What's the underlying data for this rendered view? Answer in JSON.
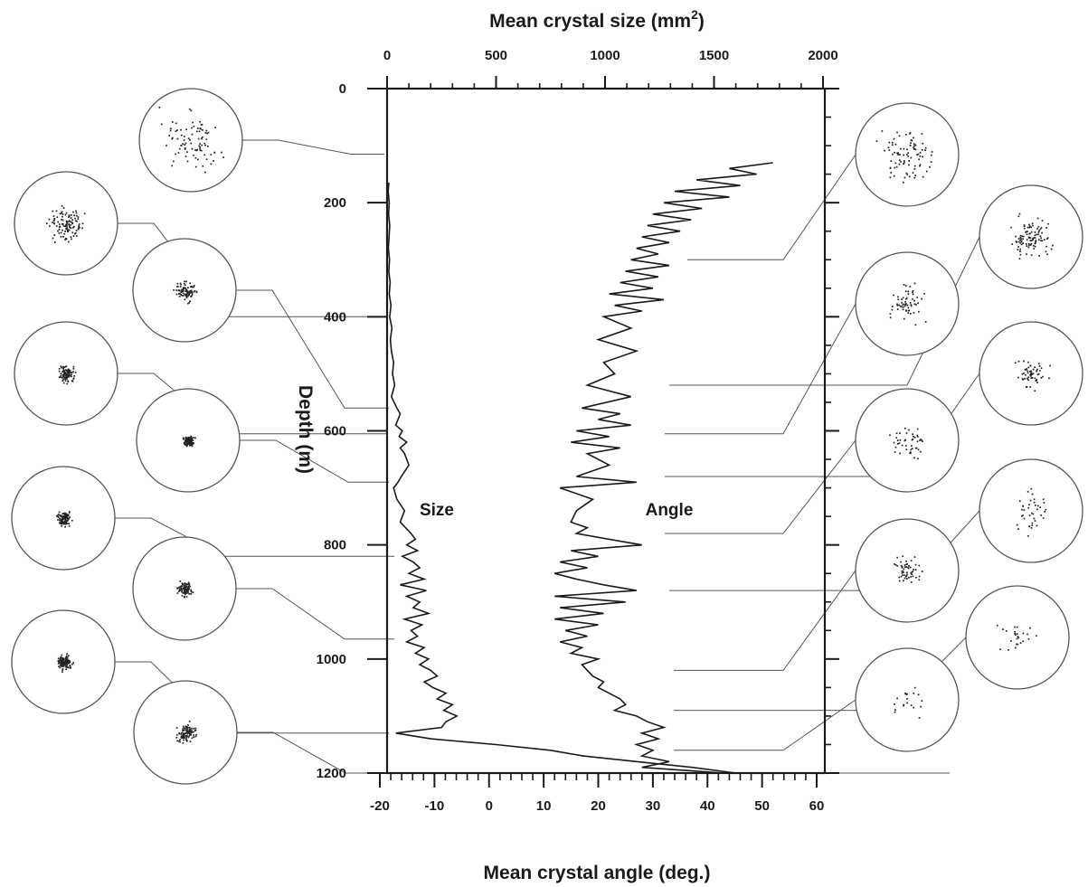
{
  "chart_data": {
    "type": "line",
    "top_axis": {
      "label_main": "Mean crystal size (mm",
      "label_sup": "2",
      "label_close": ")",
      "ticks": [
        "0",
        "500",
        "1000",
        "1500",
        "2000"
      ],
      "range": [
        0,
        2000
      ]
    },
    "bottom_axis": {
      "label": "Mean crystal angle (deg.)",
      "ticks": [
        "-20",
        "-10",
        "0",
        "10",
        "20",
        "30",
        "40",
        "50",
        "60"
      ],
      "range": [
        -20,
        60
      ]
    },
    "y_axis": {
      "label": "Depth (m)",
      "ticks": [
        "0",
        "200",
        "400",
        "600",
        "800",
        "1000",
        "1200"
      ],
      "range": [
        0,
        1200
      ],
      "inverted": true
    },
    "series": [
      {
        "name": "Size",
        "axis": "top",
        "depth": [
          165,
          180,
          200,
          220,
          240,
          260,
          280,
          300,
          320,
          340,
          360,
          380,
          400,
          420,
          440,
          460,
          480,
          500,
          520,
          540,
          560,
          570,
          580,
          590,
          600,
          610,
          620,
          630,
          640,
          660,
          680,
          690,
          700,
          720,
          740,
          760,
          780,
          790,
          800,
          810,
          820,
          830,
          840,
          850,
          860,
          870,
          880,
          890,
          900,
          910,
          920,
          930,
          940,
          950,
          960,
          970,
          980,
          990,
          1000,
          1010,
          1020,
          1030,
          1040,
          1050,
          1060,
          1070,
          1080,
          1090,
          1100,
          1110,
          1120,
          1130,
          1140,
          1150,
          1160,
          1170,
          1180,
          1190,
          1200
        ],
        "values": [
          8,
          5,
          10,
          7,
          12,
          9,
          6,
          11,
          8,
          14,
          10,
          18,
          12,
          22,
          15,
          20,
          30,
          25,
          35,
          20,
          45,
          60,
          50,
          40,
          70,
          55,
          90,
          60,
          80,
          100,
          65,
          50,
          30,
          45,
          80,
          60,
          110,
          130,
          90,
          140,
          70,
          120,
          150,
          100,
          170,
          60,
          180,
          90,
          150,
          120,
          190,
          80,
          160,
          110,
          140,
          90,
          170,
          130,
          190,
          150,
          200,
          230,
          170,
          210,
          270,
          230,
          300,
          260,
          320,
          270,
          250,
          40,
          200,
          500,
          750,
          900,
          1150,
          1400,
          1600
        ]
      },
      {
        "name": "Angle",
        "axis": "bottom",
        "depth": [
          130,
          140,
          150,
          160,
          170,
          180,
          190,
          200,
          210,
          220,
          230,
          240,
          250,
          260,
          270,
          280,
          290,
          300,
          310,
          320,
          330,
          340,
          350,
          360,
          370,
          380,
          390,
          400,
          420,
          440,
          460,
          480,
          500,
          520,
          540,
          560,
          570,
          580,
          590,
          600,
          610,
          620,
          630,
          640,
          660,
          680,
          690,
          700,
          720,
          740,
          760,
          770,
          780,
          790,
          800,
          810,
          820,
          830,
          840,
          850,
          860,
          870,
          880,
          890,
          900,
          910,
          920,
          930,
          940,
          950,
          960,
          970,
          980,
          990,
          1000,
          1010,
          1020,
          1030,
          1040,
          1050,
          1060,
          1070,
          1080,
          1090,
          1100,
          1110,
          1120,
          1130,
          1140,
          1150,
          1160,
          1170,
          1180,
          1190,
          1200
        ],
        "values": [
          52,
          44,
          49,
          38,
          46,
          34,
          44,
          32,
          39,
          30,
          37,
          29,
          35,
          28,
          33,
          27,
          31,
          26,
          33,
          25,
          31,
          24,
          30,
          22,
          32,
          23,
          28,
          21,
          26,
          20,
          27,
          21,
          23,
          18,
          26,
          17,
          24,
          20,
          26,
          16,
          22,
          15,
          24,
          18,
          22,
          16,
          27,
          13,
          19,
          16,
          15,
          18,
          16,
          22,
          28,
          15,
          20,
          13,
          18,
          12,
          16,
          21,
          27,
          12,
          25,
          13,
          21,
          12,
          20,
          14,
          18,
          13,
          17,
          15,
          20,
          17,
          18,
          19,
          21,
          20,
          22,
          24,
          25,
          23,
          27,
          29,
          32,
          28,
          31,
          27,
          30,
          28,
          33,
          28,
          43
        ]
      }
    ],
    "annotations": [
      {
        "text": "Size"
      },
      {
        "text": "Angle"
      }
    ]
  }
}
